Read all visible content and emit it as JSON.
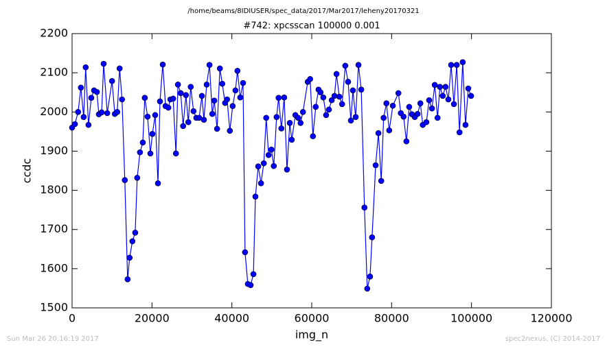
{
  "chart_data": {
    "type": "line",
    "suptitle": "/home/beams/8IDIUSER/spec_data/2017/Mar2017/leheny20170321",
    "title": "#742: xpcsscan 100000 0.001",
    "x_label": "img_n",
    "y_label": "ccdc",
    "annotations": [
      "Sun Mar 26 20:16:19 2017",
      "spec2nexus, (C) 2014-2017"
    ],
    "xlim": [
      0,
      120000
    ],
    "xticks": [
      0,
      20000,
      40000,
      60000,
      80000,
      100000,
      120000
    ],
    "ylim": [
      1500,
      2200
    ],
    "yticks": [
      1500,
      1600,
      1700,
      1800,
      1900,
      2000,
      2100,
      2200
    ],
    "color": "#0000ff",
    "marker": "circle",
    "x": [
      0,
      700,
      1500,
      2200,
      2900,
      3400,
      4100,
      4800,
      5500,
      6200,
      6700,
      7400,
      7900,
      8800,
      10000,
      10700,
      11300,
      11900,
      12500,
      13200,
      13900,
      14400,
      15100,
      15800,
      16300,
      17000,
      17700,
      18200,
      18900,
      19600,
      20100,
      20800,
      21500,
      22000,
      22700,
      23400,
      24100,
      24600,
      25300,
      26000,
      26500,
      27200,
      27800,
      28500,
      29100,
      29700,
      30400,
      31100,
      31800,
      32500,
      33000,
      33700,
      34400,
      35100,
      35600,
      36300,
      37000,
      37600,
      38300,
      38800,
      39500,
      40200,
      40900,
      41400,
      42100,
      42800,
      43300,
      44000,
      44700,
      45400,
      45900,
      46600,
      47300,
      48000,
      48600,
      49200,
      49900,
      50500,
      51200,
      51700,
      52400,
      53100,
      53800,
      54500,
      55000,
      55900,
      56600,
      57200,
      57800,
      59000,
      59600,
      60300,
      61000,
      61700,
      62200,
      62900,
      63600,
      64300,
      65000,
      65700,
      66200,
      66900,
      67600,
      68400,
      69100,
      69800,
      70300,
      71000,
      71700,
      72400,
      73200,
      73900,
      74600,
      75100,
      76000,
      76700,
      77400,
      78000,
      78700,
      79400,
      80300,
      81700,
      82300,
      83000,
      83700,
      84400,
      85100,
      85800,
      86500,
      87200,
      87800,
      88700,
      89400,
      90100,
      90800,
      91500,
      92100,
      92800,
      93500,
      94200,
      94900,
      95600,
      96300,
      97000,
      97800,
      98500,
      99200,
      99900
    ],
    "values": [
      1960,
      1969,
      2000,
      2062,
      1987,
      2114,
      1967,
      2036,
      2055,
      2051,
      1994,
      1999,
      2123,
      1997,
      2079,
      1995,
      2000,
      2111,
      2032,
      1826,
      1573,
      1628,
      1670,
      1692,
      1832,
      1897,
      1922,
      2036,
      1988,
      1894,
      1944,
      1992,
      1818,
      2027,
      2121,
      2015,
      2011,
      2032,
      2034,
      1894,
      2070,
      2048,
      1964,
      2043,
      1974,
      2064,
      2002,
      1985,
      1985,
      2041,
      1980,
      2070,
      2120,
      1995,
      2029,
      1957,
      2111,
      2072,
      2023,
      2032,
      1952,
      2015,
      2055,
      2105,
      2037,
      2074,
      1642,
      1561,
      1558,
      1586,
      1784,
      1861,
      1818,
      1869,
      1985,
      1890,
      1904,
      1862,
      1987,
      2036,
      1958,
      2037,
      1853,
      1972,
      1929,
      1992,
      1985,
      1972,
      2000,
      2077,
      2084,
      1938,
      2013,
      2057,
      2050,
      2037,
      1992,
      2006,
      2030,
      2041,
      2097,
      2039,
      2020,
      2118,
      2077,
      1978,
      2055,
      1987,
      2120,
      2057,
      1756,
      1549,
      1580,
      1680,
      1864,
      1946,
      1824,
      1985,
      2022,
      1953,
      2016,
      2048,
      1997,
      1988,
      1925,
      2013,
      1994,
      1987,
      1995,
      2022,
      1967,
      1974,
      2030,
      2009,
      2069,
      1985,
      2064,
      2041,
      2064,
      2032,
      2120,
      2020,
      2120,
      1948,
      2127,
      1967,
      2060,
      2041
    ]
  }
}
